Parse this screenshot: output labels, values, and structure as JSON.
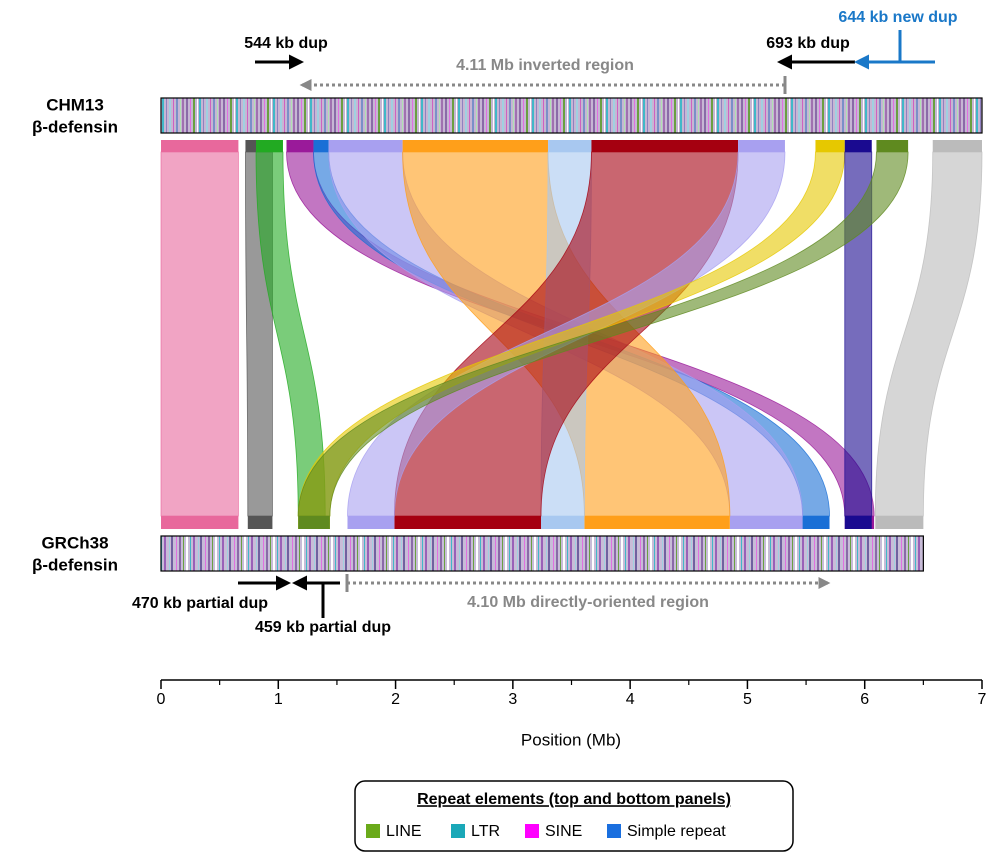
{
  "chart_data": {
    "type": "synteny",
    "xlabel": "Position (Mb)",
    "xlim": [
      0,
      7
    ],
    "xticks": [
      0,
      1,
      2,
      3,
      4,
      5,
      6,
      7
    ],
    "xminor": [
      0.5,
      1.5,
      2.5,
      3.5,
      4.5,
      5.5,
      6.5
    ],
    "top_genome": {
      "labels": [
        "CHM13",
        "β-defensin"
      ],
      "span": [
        0,
        7
      ]
    },
    "bottom_genome": {
      "labels": [
        "GRCh38",
        "β-defensin"
      ],
      "span": [
        0,
        6.5
      ]
    },
    "alignments": [
      {
        "color": "#e8689c",
        "top": [
          0,
          0.66
        ],
        "bottom": [
          0,
          0.66
        ]
      },
      {
        "color": "#555555",
        "top": [
          0.72,
          0.95
        ],
        "bottom": [
          0.74,
          0.95
        ]
      },
      {
        "color": "#22aa22",
        "top": [
          0.81,
          1.04
        ],
        "bottom": [
          1.17,
          1.4
        ]
      },
      {
        "color": "#9a1a9a",
        "top": [
          1.07,
          1.3
        ],
        "bottom": [
          5.83,
          6.08
        ]
      },
      {
        "color": "#1a6fd6",
        "top": [
          1.3,
          1.43
        ],
        "bottom": [
          5.47,
          5.7
        ]
      },
      {
        "color": "#a8a0f0",
        "top": [
          1.43,
          2.06
        ],
        "bottom": [
          4.85,
          5.47
        ]
      },
      {
        "color": "#ff9f1a",
        "top": [
          2.06,
          3.3
        ],
        "bottom": [
          3.61,
          4.85
        ]
      },
      {
        "color": "#a8c8f0",
        "top": [
          3.3,
          3.67
        ],
        "bottom": [
          3.24,
          3.61
        ]
      },
      {
        "color": "#a50010",
        "top": [
          3.67,
          4.92
        ],
        "bottom": [
          1.99,
          3.24
        ]
      },
      {
        "color": "#a8a0f0",
        "top": [
          4.92,
          5.32
        ],
        "bottom": [
          1.59,
          1.99
        ]
      },
      {
        "color": "#e6c800",
        "top": [
          5.58,
          5.83
        ],
        "bottom": [
          1.17,
          1.44
        ]
      },
      {
        "color": "#1a0a90",
        "top": [
          5.83,
          6.06
        ],
        "bottom": [
          5.83,
          6.06
        ]
      },
      {
        "color": "#5f8a1f",
        "top": [
          6.1,
          6.37
        ],
        "bottom": [
          1.17,
          1.44
        ]
      },
      {
        "color": "#bbbbbb",
        "top": [
          6.58,
          7
        ],
        "bottom": [
          6.09,
          6.5
        ]
      }
    ],
    "annotations": [
      "544 kb dup",
      "4.11 Mb inverted region",
      "693 kb dup",
      "644 kb new dup",
      "470 kb partial dup",
      "459 kb partial dup",
      "4.10 Mb directly-oriented region"
    ],
    "legend": {
      "title": "Repeat elements (top and bottom panels)",
      "items": [
        {
          "name": "LINE",
          "color": "#6aaa1a"
        },
        {
          "name": "LTR",
          "color": "#1aa8b8"
        },
        {
          "name": "SINE",
          "color": "#ff00ff"
        },
        {
          "name": "Simple repeat",
          "color": "#1a6fdf"
        }
      ]
    }
  }
}
